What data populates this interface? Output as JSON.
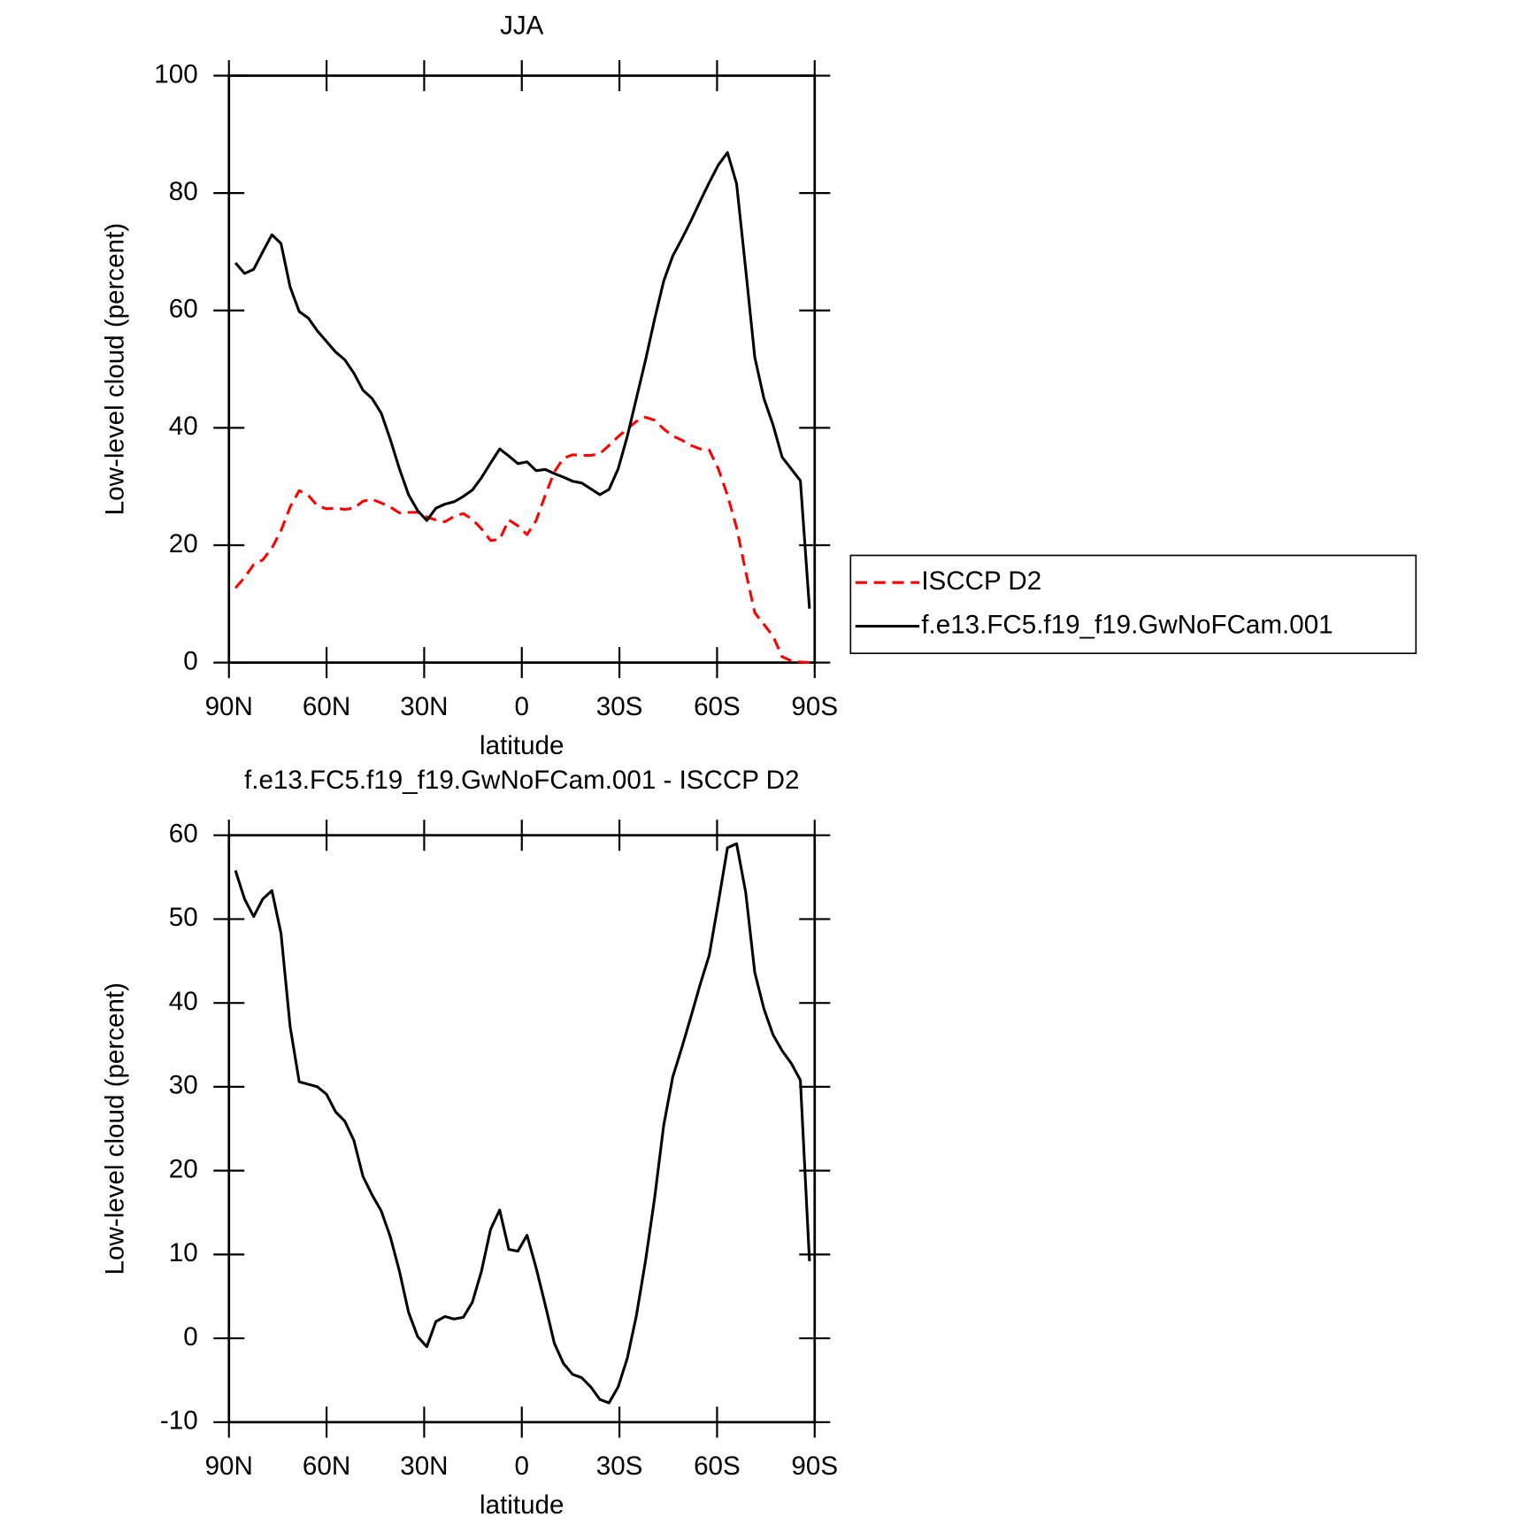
{
  "chart_data": [
    {
      "type": "line",
      "title": "JJA",
      "xlabel": "latitude",
      "ylabel": "Low-level cloud (percent)",
      "x": [
        88,
        85.2,
        82.4,
        79.6,
        76.8,
        74,
        71.2,
        68.4,
        65.6,
        62.8,
        60,
        57.2,
        54.4,
        51.6,
        48.8,
        46,
        43.2,
        40.4,
        37.6,
        34.8,
        32,
        29.2,
        26.4,
        23.6,
        20.8,
        18,
        15.2,
        12.4,
        9.6,
        6.8,
        4,
        1.2,
        -1.6,
        -4.4,
        -7.2,
        -10,
        -12.8,
        -15.6,
        -18.4,
        -21.2,
        -24,
        -26.8,
        -29.6,
        -32.4,
        -35.2,
        -38,
        -40.8,
        -43.6,
        -46.4,
        -49.2,
        -52,
        -54.8,
        -57.6,
        -60.4,
        -63.2,
        -66,
        -68.8,
        -71.6,
        -74.4,
        -77.2,
        -80,
        -82.8,
        -85.6,
        -88.4
      ],
      "series": [
        {
          "name": "ISCCP D2",
          "color": "#ff0000",
          "dash": true,
          "values": [
            12.7,
            14.5,
            16.7,
            17.5,
            19.5,
            22.5,
            26.5,
            29.3,
            28.5,
            26.7,
            26.2,
            26.3,
            26.1,
            26.3,
            27.5,
            27.8,
            27.2,
            26.5,
            25.5,
            25.6,
            25.6,
            24.8,
            24.3,
            24,
            24.9,
            25.4,
            24.4,
            22.8,
            20.8,
            21,
            24.3,
            23.3,
            21.8,
            24.2,
            28.5,
            32.5,
            34.8,
            35.4,
            35.3,
            35.3,
            35.6,
            37,
            38.5,
            39.8,
            41.1,
            41.8,
            41.3,
            39.8,
            38.6,
            37.9,
            37,
            36.4,
            36.2,
            33,
            28.5,
            23,
            15.5,
            8.5,
            6.5,
            4.5,
            1,
            0.3,
            0.1,
            0
          ]
        },
        {
          "name": "f.e13.FC5.f19_f19.GwNoFCam.001",
          "color": "#000000",
          "dash": false,
          "values": [
            68.1,
            66.3,
            67,
            70,
            72.9,
            71.4,
            64,
            59.8,
            58.7,
            56.5,
            54.7,
            52.9,
            51.6,
            49.3,
            46.4,
            45,
            42.5,
            38,
            33,
            28.6,
            25.9,
            24.2,
            26.3,
            27,
            27.4,
            28.3,
            29.4,
            31.5,
            34,
            36.4,
            35.2,
            33.9,
            34.2,
            32.7,
            32.9,
            32.2,
            31.6,
            30.9,
            30.6,
            29.6,
            28.6,
            29.5,
            33,
            38.5,
            45,
            51.5,
            58.5,
            65,
            69.3,
            72.2,
            75.3,
            78.6,
            81.8,
            84.8,
            86.9,
            81.6,
            67,
            52,
            45,
            40.5,
            35,
            33,
            31,
            9.2
          ]
        }
      ],
      "xlim": [
        90,
        -90
      ],
      "xticks": [
        {
          "value": 90,
          "label": "90N"
        },
        {
          "value": 60,
          "label": "60N"
        },
        {
          "value": 30,
          "label": "30N"
        },
        0,
        {
          "value": -30,
          "label": "30S"
        },
        {
          "value": -60,
          "label": "60S"
        },
        {
          "value": -90,
          "label": "90S"
        }
      ],
      "ylim": [
        0,
        100
      ],
      "yticks": [
        0,
        20,
        40,
        60,
        80,
        100
      ],
      "legend_position": "right"
    },
    {
      "type": "line",
      "title": "f.e13.FC5.f19_f19.GwNoFCam.001 - ISCCP D2",
      "xlabel": "latitude",
      "ylabel": "Low-level cloud (percent)",
      "x": [
        88,
        85.2,
        82.4,
        79.6,
        76.8,
        74,
        71.2,
        68.4,
        65.6,
        62.8,
        60,
        57.2,
        54.4,
        51.6,
        48.8,
        46,
        43.2,
        40.4,
        37.6,
        34.8,
        32,
        29.2,
        26.4,
        23.6,
        20.8,
        18,
        15.2,
        12.4,
        9.6,
        6.8,
        4,
        1.2,
        -1.6,
        -4.4,
        -7.2,
        -10,
        -12.8,
        -15.6,
        -18.4,
        -21.2,
        -24,
        -26.8,
        -29.6,
        -32.4,
        -35.2,
        -38,
        -40.8,
        -43.6,
        -46.4,
        -49.2,
        -52,
        -54.8,
        -57.6,
        -60.4,
        -63.2,
        -66,
        -68.8,
        -71.6,
        -74.4,
        -77.2,
        -80,
        -82.8,
        -85.6,
        -88.4
      ],
      "series": [
        {
          "color": "#000000",
          "dash": false,
          "values": [
            55.8,
            52.4,
            50.3,
            52.4,
            53.4,
            48.3,
            37.2,
            30.6,
            30.3,
            30,
            29.1,
            27,
            25.9,
            23.6,
            19.3,
            17.1,
            15.2,
            12.1,
            8,
            3.1,
            0.2,
            -1,
            2,
            2.6,
            2.3,
            2.5,
            4.3,
            8,
            13,
            15.3,
            10.6,
            10.4,
            12.3,
            8.4,
            4,
            -0.6,
            -3,
            -4.3,
            -4.7,
            -5.8,
            -7.3,
            -7.7,
            -5.8,
            -2.4,
            2.7,
            9.2,
            16.7,
            25.4,
            31.2,
            34.7,
            38.4,
            42.2,
            45.7,
            52,
            58.5,
            59,
            53.2,
            43.6,
            39.3,
            36.2,
            34.3,
            32.8,
            30.8,
            9.2
          ]
        }
      ],
      "xlim": [
        90,
        -90
      ],
      "xticks": [
        {
          "value": 90,
          "label": "90N"
        },
        {
          "value": 60,
          "label": "60N"
        },
        {
          "value": 30,
          "label": "30N"
        },
        0,
        {
          "value": -30,
          "label": "30S"
        },
        {
          "value": -60,
          "label": "60S"
        },
        {
          "value": -90,
          "label": "90S"
        }
      ],
      "ylim": [
        -10,
        60
      ],
      "yticks": [
        -10,
        0,
        10,
        20,
        30,
        40,
        50,
        60
      ]
    }
  ]
}
